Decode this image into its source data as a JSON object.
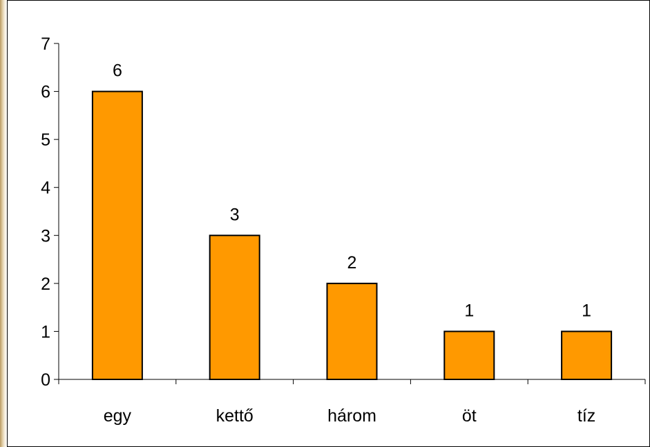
{
  "chart_data": {
    "type": "bar",
    "categories": [
      "egy",
      "kettő",
      "három",
      "öt",
      "tíz"
    ],
    "values": [
      6,
      3,
      2,
      1,
      1
    ],
    "data_labels": [
      "6",
      "3",
      "2",
      "1",
      "1"
    ],
    "title": "",
    "xlabel": "",
    "ylabel": "",
    "ylim": [
      0,
      7
    ],
    "yticks": [
      "0",
      "1",
      "2",
      "3",
      "4",
      "5",
      "6",
      "7"
    ],
    "grid": false,
    "legend": "none",
    "colors": {
      "bar_fill": "#FF9900",
      "bar_stroke": "#000000",
      "axis": "#000000",
      "text": "#000000"
    }
  }
}
